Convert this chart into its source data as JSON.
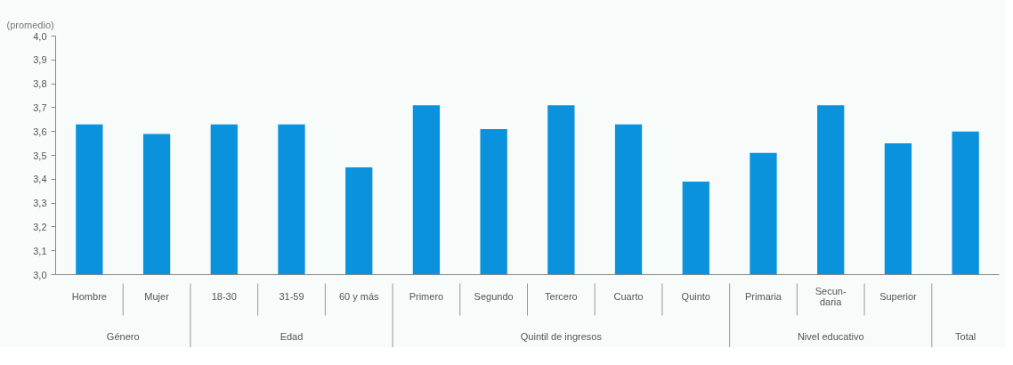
{
  "chart_data": {
    "type": "bar",
    "ylabel": "(promedio)",
    "categories": [
      "Hombre",
      "Mujer",
      "18-30",
      "31-59",
      "60 y más",
      "Primero",
      "Segundo",
      "Tercero",
      "Cuarto",
      "Quinto",
      "Primaria",
      "Secun-\ndaria",
      "Superior",
      null
    ],
    "values": [
      3.63,
      3.59,
      3.63,
      3.63,
      3.45,
      3.71,
      3.61,
      3.71,
      3.63,
      3.39,
      3.51,
      3.71,
      3.55,
      3.6
    ],
    "color": "#0a93dc",
    "ylim": [
      3.0,
      4.0
    ],
    "yticks": [
      {
        "value": 3.0,
        "label": "3,0"
      },
      {
        "value": 3.1,
        "label": "3,1"
      },
      {
        "value": 3.2,
        "label": "3,2"
      },
      {
        "value": 3.3,
        "label": "3,3"
      },
      {
        "value": 3.4,
        "label": "3,4"
      },
      {
        "value": 3.5,
        "label": "3,5"
      },
      {
        "value": 3.6,
        "label": "3,6"
      },
      {
        "value": 3.7,
        "label": "3,7"
      },
      {
        "value": 3.8,
        "label": "3,8"
      },
      {
        "value": 3.9,
        "label": "3,9"
      },
      {
        "value": 4.0,
        "label": "4,0"
      }
    ],
    "annotations": [
      "Género",
      "Edad",
      "Quintil de ingresos",
      "Nivel educativo",
      "Total"
    ]
  }
}
